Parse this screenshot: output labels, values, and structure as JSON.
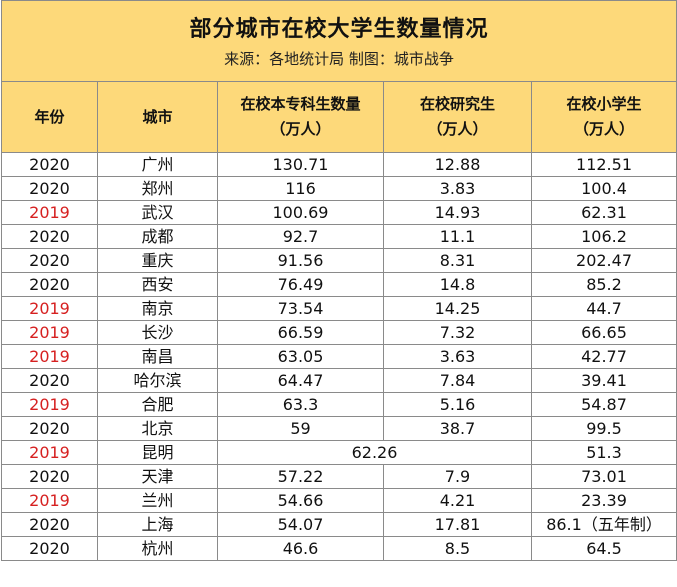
{
  "title": "部分城市在校大学生数量情况",
  "source": "来源：各地统计局   制图：城市战争",
  "headers": {
    "year": "年份",
    "city": "城市",
    "undergrad": [
      "在校本专科生数量",
      "（万人）"
    ],
    "grad": [
      "在校研究生",
      "（万人）"
    ],
    "primary": [
      "在校小学生",
      "（万人）"
    ]
  },
  "colors": {
    "header_bg": "#fdd97a",
    "year_2019": "#d62020",
    "border": "#8a8a8a"
  },
  "rows": [
    {
      "year": "2020",
      "city": "广州",
      "undergrad": "130.71",
      "grad": "12.88",
      "primary": "112.51"
    },
    {
      "year": "2020",
      "city": "郑州",
      "undergrad": "116",
      "grad": "3.83",
      "primary": "100.4"
    },
    {
      "year": "2019",
      "city": "武汉",
      "undergrad": "100.69",
      "grad": "14.93",
      "primary": "62.31"
    },
    {
      "year": "2020",
      "city": "成都",
      "undergrad": "92.7",
      "grad": "11.1",
      "primary": "106.2"
    },
    {
      "year": "2020",
      "city": "重庆",
      "undergrad": "91.56",
      "grad": "8.31",
      "primary": "202.47"
    },
    {
      "year": "2020",
      "city": "西安",
      "undergrad": "76.49",
      "grad": "14.8",
      "primary": "85.2"
    },
    {
      "year": "2019",
      "city": "南京",
      "undergrad": "73.54",
      "grad": "14.25",
      "primary": "44.7"
    },
    {
      "year": "2019",
      "city": "长沙",
      "undergrad": "66.59",
      "grad": "7.32",
      "primary": "66.65"
    },
    {
      "year": "2019",
      "city": "南昌",
      "undergrad": "63.05",
      "grad": "3.63",
      "primary": "42.77"
    },
    {
      "year": "2020",
      "city": "哈尔滨",
      "undergrad": "64.47",
      "grad": "7.84",
      "primary": "39.41"
    },
    {
      "year": "2019",
      "city": "合肥",
      "undergrad": "63.3",
      "grad": "5.16",
      "primary": "54.87"
    },
    {
      "year": "2020",
      "city": "北京",
      "undergrad": "59",
      "grad": "38.7",
      "primary": "99.5"
    },
    {
      "year": "2019",
      "city": "昆明",
      "combined": "62.26",
      "primary": "51.3"
    },
    {
      "year": "2020",
      "city": "天津",
      "undergrad": "57.22",
      "grad": "7.9",
      "primary": "73.01"
    },
    {
      "year": "2019",
      "city": "兰州",
      "undergrad": "54.66",
      "grad": "4.21",
      "primary": "23.39"
    },
    {
      "year": "2020",
      "city": "上海",
      "undergrad": "54.07",
      "grad": "17.81",
      "primary": "86.1（五年制）"
    },
    {
      "year": "2020",
      "city": "杭州",
      "undergrad": "46.6",
      "grad": "8.5",
      "primary": "64.5"
    }
  ]
}
